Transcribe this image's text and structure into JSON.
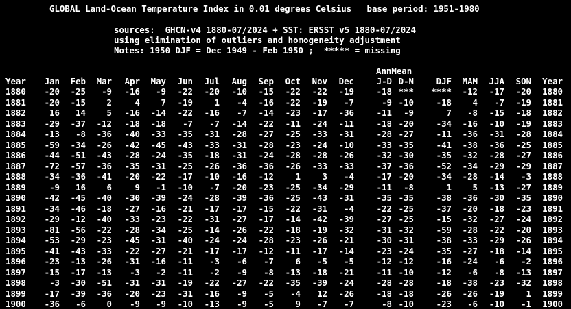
{
  "header": {
    "title_line": "GLOBAL Land-Ocean Temperature Index in 0.01 degrees Celsius   base period: 1951-1980",
    "sources_line": "sources:  GHCN-v4 1880-07/2024 + SST: ERSST v5 1880-07/2024",
    "method_line": "using elimination of outliers and homogeneity adjustment",
    "notes_line": "Notes: 1950 DJF = Dec 1949 - Feb 1950 ;  ***** = missing"
  },
  "table": {
    "super_header": "AnnMean",
    "columns": [
      "Year",
      "Jan",
      "Feb",
      "Mar",
      "Apr",
      "May",
      "Jun",
      "Jul",
      "Aug",
      "Sep",
      "Oct",
      "Nov",
      "Dec",
      "J-D",
      "D-N",
      "DJF",
      "MAM",
      "JJA",
      "SON",
      "Year"
    ],
    "rows": [
      [
        "1880",
        "-20",
        "-25",
        "-9",
        "-16",
        "-9",
        "-22",
        "-20",
        "-10",
        "-15",
        "-22",
        "-22",
        "-19",
        "-18",
        "***",
        "****",
        "-12",
        "-17",
        "-20",
        "1880"
      ],
      [
        "1881",
        "-20",
        "-15",
        "2",
        "4",
        "7",
        "-19",
        "1",
        "-4",
        "-16",
        "-22",
        "-19",
        "-7",
        "-9",
        "-10",
        "-18",
        "4",
        "-7",
        "-19",
        "1881"
      ],
      [
        "1882",
        "16",
        "14",
        "5",
        "-16",
        "-14",
        "-22",
        "-16",
        "-7",
        "-14",
        "-23",
        "-17",
        "-36",
        "-11",
        "-9",
        "7",
        "-8",
        "-15",
        "-18",
        "1882"
      ],
      [
        "1883",
        "-29",
        "-37",
        "-12",
        "-18",
        "-18",
        "-7",
        "-7",
        "-14",
        "-22",
        "-11",
        "-24",
        "-11",
        "-18",
        "-20",
        "-34",
        "-16",
        "-10",
        "-19",
        "1883"
      ],
      [
        "1884",
        "-13",
        "-8",
        "-36",
        "-40",
        "-33",
        "-35",
        "-31",
        "-28",
        "-27",
        "-25",
        "-33",
        "-31",
        "-28",
        "-27",
        "-11",
        "-36",
        "-31",
        "-28",
        "1884"
      ],
      [
        "1885",
        "-59",
        "-34",
        "-26",
        "-42",
        "-45",
        "-43",
        "-33",
        "-31",
        "-28",
        "-23",
        "-24",
        "-10",
        "-33",
        "-35",
        "-41",
        "-38",
        "-36",
        "-25",
        "1885"
      ],
      [
        "1886",
        "-44",
        "-51",
        "-43",
        "-28",
        "-24",
        "-35",
        "-18",
        "-31",
        "-24",
        "-28",
        "-28",
        "-26",
        "-32",
        "-30",
        "-35",
        "-32",
        "-28",
        "-27",
        "1886"
      ],
      [
        "1887",
        "-72",
        "-57",
        "-36",
        "-35",
        "-31",
        "-25",
        "-26",
        "-36",
        "-36",
        "-26",
        "-33",
        "-33",
        "-37",
        "-36",
        "-52",
        "-34",
        "-29",
        "-29",
        "1887"
      ],
      [
        "1888",
        "-34",
        "-36",
        "-41",
        "-20",
        "-22",
        "-17",
        "-10",
        "-16",
        "-12",
        "1",
        "3",
        "-4",
        "-17",
        "-20",
        "-34",
        "-28",
        "-14",
        "-3",
        "1888"
      ],
      [
        "1889",
        "-9",
        "16",
        "6",
        "9",
        "-1",
        "-10",
        "-7",
        "-20",
        "-23",
        "-25",
        "-34",
        "-29",
        "-11",
        "-8",
        "1",
        "5",
        "-13",
        "-27",
        "1889"
      ],
      [
        "1890",
        "-42",
        "-45",
        "-40",
        "-30",
        "-39",
        "-24",
        "-28",
        "-39",
        "-36",
        "-25",
        "-43",
        "-31",
        "-35",
        "-35",
        "-38",
        "-36",
        "-30",
        "-35",
        "1890"
      ],
      [
        "1891",
        "-34",
        "-46",
        "-18",
        "-27",
        "-16",
        "-21",
        "-17",
        "-17",
        "-15",
        "-22",
        "-31",
        "-4",
        "-22",
        "-25",
        "-37",
        "-20",
        "-18",
        "-23",
        "1891"
      ],
      [
        "1892",
        "-29",
        "-12",
        "-40",
        "-33",
        "-23",
        "-22",
        "-31",
        "-27",
        "-17",
        "-14",
        "-42",
        "-39",
        "-27",
        "-25",
        "-15",
        "-32",
        "-27",
        "-24",
        "1892"
      ],
      [
        "1893",
        "-81",
        "-56",
        "-22",
        "-28",
        "-34",
        "-25",
        "-14",
        "-26",
        "-22",
        "-18",
        "-19",
        "-32",
        "-31",
        "-32",
        "-59",
        "-28",
        "-22",
        "-20",
        "1893"
      ],
      [
        "1894",
        "-53",
        "-29",
        "-23",
        "-45",
        "-31",
        "-40",
        "-24",
        "-24",
        "-28",
        "-23",
        "-26",
        "-21",
        "-30",
        "-31",
        "-38",
        "-33",
        "-29",
        "-26",
        "1894"
      ],
      [
        "1895",
        "-41",
        "-43",
        "-33",
        "-22",
        "-27",
        "-21",
        "-17",
        "-17",
        "-12",
        "-11",
        "-17",
        "-14",
        "-23",
        "-24",
        "-35",
        "-27",
        "-18",
        "-14",
        "1895"
      ],
      [
        "1896",
        "-23",
        "-13",
        "-26",
        "-31",
        "-16",
        "-11",
        "-3",
        "-6",
        "-7",
        "6",
        "-5",
        "-5",
        "-12",
        "-12",
        "-16",
        "-24",
        "-6",
        "-2",
        "1896"
      ],
      [
        "1897",
        "-15",
        "-17",
        "-13",
        "-3",
        "-2",
        "-11",
        "-2",
        "-9",
        "-8",
        "-13",
        "-18",
        "-21",
        "-11",
        "-10",
        "-12",
        "-6",
        "-8",
        "-13",
        "1897"
      ],
      [
        "1898",
        "-3",
        "-30",
        "-51",
        "-31",
        "-31",
        "-19",
        "-22",
        "-27",
        "-22",
        "-35",
        "-39",
        "-24",
        "-28",
        "-28",
        "-18",
        "-38",
        "-23",
        "-32",
        "1898"
      ],
      [
        "1899",
        "-17",
        "-39",
        "-36",
        "-20",
        "-23",
        "-31",
        "-16",
        "-9",
        "-5",
        "-4",
        "12",
        "-26",
        "-18",
        "-18",
        "-26",
        "-26",
        "-19",
        "1",
        "1899"
      ],
      [
        "1900",
        "-36",
        "-6",
        "0",
        "-9",
        "-9",
        "-10",
        "-13",
        "-9",
        "-5",
        "9",
        "-7",
        "-7",
        "-8",
        "-10",
        "-23",
        "-6",
        "-10",
        "-1",
        "1900"
      ]
    ]
  }
}
